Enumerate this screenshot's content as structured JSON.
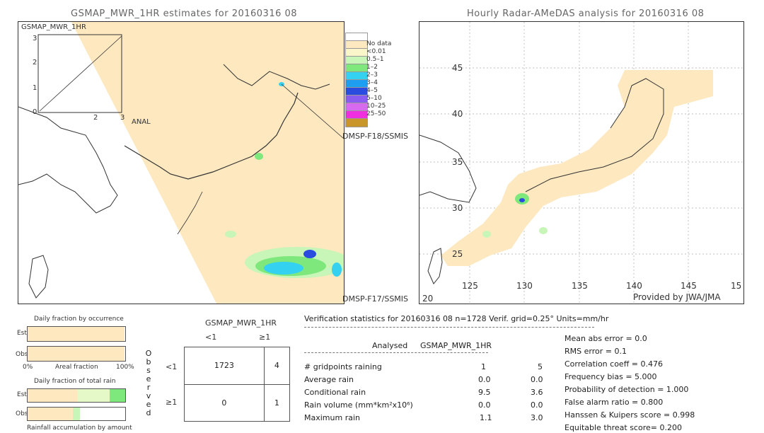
{
  "left_map": {
    "title": "GSMAP_MWR_1HR estimates for 20160316 08",
    "inset_label": "GSMAP_MWR_1HR",
    "inset_ticks_y": [
      "3",
      "2",
      "1",
      "0"
    ],
    "inset_ticks_x": [
      "2",
      "3"
    ],
    "anal_label": "ANAL",
    "swath_labels": [
      "DMSP-F18/SSMIS",
      "DMSP-F17/SSMIS"
    ]
  },
  "right_map": {
    "title": "Hourly Radar-AMeDAS analysis for 20160316 08",
    "lat_ticks": [
      "45",
      "40",
      "35",
      "30",
      "25",
      "20"
    ],
    "lon_ticks": [
      "125",
      "130",
      "135",
      "140",
      "145",
      "15"
    ],
    "provider": "Provided by JWA/JMA"
  },
  "legend": {
    "items": [
      {
        "label": "",
        "color": "#ffffff"
      },
      {
        "label": "No data",
        "color": "#fde8bf"
      },
      {
        "label": "<0.01",
        "color": "#fbf6c9"
      },
      {
        "label": "0.5–1",
        "color": "#c8f5b8"
      },
      {
        "label": "1–2",
        "color": "#7ee87c"
      },
      {
        "label": "2–3",
        "color": "#35d1f0"
      },
      {
        "label": "3–4",
        "color": "#1e9ef0"
      },
      {
        "label": "4–5",
        "color": "#2a4de0"
      },
      {
        "label": "5–10",
        "color": "#8a5cf0"
      },
      {
        "label": "10–25",
        "color": "#d86af0"
      },
      {
        "label": "25–50",
        "color": "#ef2ee0"
      },
      {
        "label": "",
        "color": "#c8962a"
      }
    ]
  },
  "occurrence": {
    "title": "Daily fraction by occurrence",
    "est_label": "Est",
    "obs_label": "Obs",
    "axis_left": "0%",
    "axis_mid": "Areal fraction",
    "axis_right": "100%",
    "est_fraction": 0.995,
    "obs_fraction": 0.995
  },
  "total_rain": {
    "title": "Daily fraction of total rain",
    "est_label": "Est",
    "obs_label": "Obs",
    "footer": "Rainfall accumulation by amount"
  },
  "contingency": {
    "title": "GSMAP_MWR_1HR",
    "col_lt": "<1",
    "col_ge": "≥1",
    "row_lt": "<1",
    "row_ge": "≥1",
    "observed_letters": [
      "O",
      "b",
      "s",
      "e",
      "r",
      "v",
      "e",
      "d"
    ],
    "cells": [
      "1723",
      "4",
      "0",
      "1"
    ]
  },
  "verification": {
    "header": "Verification statistics for 20160316 08   n=1728   Verif. grid=0.25°   Units=mm/hr",
    "col_analysed": "Analysed",
    "col_model": "GSMAP_MWR_1HR",
    "rows": [
      {
        "label": "# gridpoints raining",
        "analysed": "1",
        "model": "5"
      },
      {
        "label": "Average rain",
        "analysed": "0.0",
        "model": "0.0"
      },
      {
        "label": "Conditional rain",
        "analysed": "9.5",
        "model": "3.6"
      },
      {
        "label": "Rain volume (mm*km²x10⁶)",
        "analysed": "0.0",
        "model": "0.0"
      },
      {
        "label": "Maximum rain",
        "analysed": "1.1",
        "model": "3.0"
      }
    ],
    "scores": [
      "Mean abs error = 0.0",
      "RMS error = 0.1",
      "Correlation coeff = 0.476",
      "Frequency bias = 5.000",
      "Probability of detection = 1.000",
      "False alarm ratio = 0.800",
      "Hanssen & Kuipers score = 0.998",
      "Equitable threat score= 0.200"
    ]
  },
  "chart_data": {
    "type": "table",
    "contingency_matrix": {
      "est_lt1_obs_lt1": 1723,
      "est_ge1_obs_lt1": 4,
      "est_lt1_obs_ge1": 0,
      "est_ge1_obs_ge1": 1
    },
    "n": 1728,
    "analysed": {
      "gridpoints_raining": 1,
      "average_rain": 0.0,
      "conditional_rain": 9.5,
      "rain_volume": 0.0,
      "maximum_rain": 1.1
    },
    "model": {
      "gridpoints_raining": 5,
      "average_rain": 0.0,
      "conditional_rain": 3.6,
      "rain_volume": 0.0,
      "maximum_rain": 3.0
    }
  }
}
